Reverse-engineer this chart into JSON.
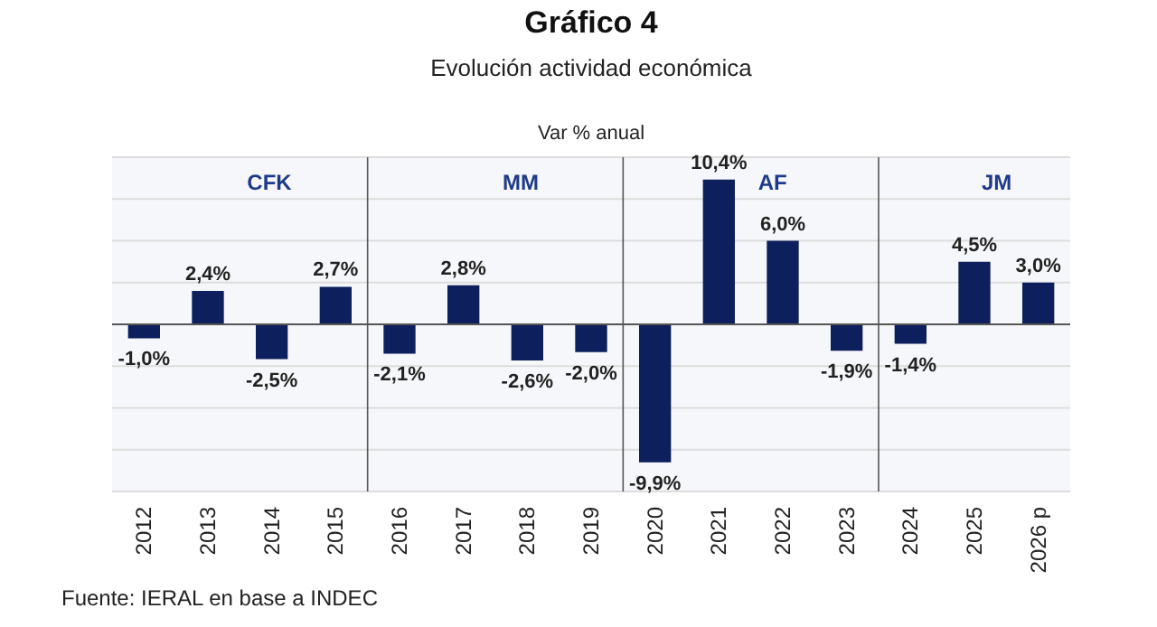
{
  "chart_data": {
    "type": "bar",
    "title": "Gráfico 4",
    "subtitle": "Evolución actividad económica",
    "ylabel": "Var % anual",
    "annotations": [
      "Fuente: IERAL en base a INDEC"
    ],
    "categories": [
      "2012",
      "2013",
      "2014",
      "2015",
      "2016",
      "2017",
      "2018",
      "2019",
      "2020",
      "2021",
      "2022",
      "2023",
      "2024",
      "2025",
      "2026 p"
    ],
    "values": [
      -1.0,
      2.4,
      -2.5,
      2.7,
      -2.1,
      2.8,
      -2.6,
      -2.0,
      -9.9,
      10.4,
      6.0,
      -1.9,
      -1.4,
      4.5,
      3.0
    ],
    "value_labels": [
      "-1,0%",
      "2,4%",
      "-2,5%",
      "2,7%",
      "-2,1%",
      "2,8%",
      "-2,6%",
      "-2,0%",
      "-9,9%",
      "10,4%",
      "6,0%",
      "-1,9%",
      "-1,4%",
      "4,5%",
      "3,0%"
    ],
    "color": "#0d1f5c",
    "ylim": [
      -12,
      12
    ],
    "yticks": [
      {
        "value": -12,
        "label": null
      },
      {
        "value": -9,
        "label": null
      },
      {
        "value": -6,
        "label": null
      },
      {
        "value": -3,
        "label": null
      },
      {
        "value": 0,
        "label": null
      },
      {
        "value": 3,
        "label": null
      },
      {
        "value": 6,
        "label": null
      },
      {
        "value": 9,
        "label": null
      },
      {
        "value": 12,
        "label": null
      }
    ],
    "tick_labels": "x",
    "grid": "y",
    "bands": [
      {
        "axis": "x",
        "from": "2012",
        "to": "2015",
        "label": "CFK",
        "color": "#f6f7fa"
      },
      {
        "axis": "x",
        "from": "2016",
        "to": "2019",
        "label": "MM",
        "color": "#f6f7fa"
      },
      {
        "axis": "x",
        "from": "2020",
        "to": "2023",
        "label": "AF",
        "color": "#f6f7fa"
      },
      {
        "axis": "x",
        "from": "2024",
        "to": "2026 p",
        "label": "JM",
        "color": "#f6f7fa"
      }
    ]
  }
}
